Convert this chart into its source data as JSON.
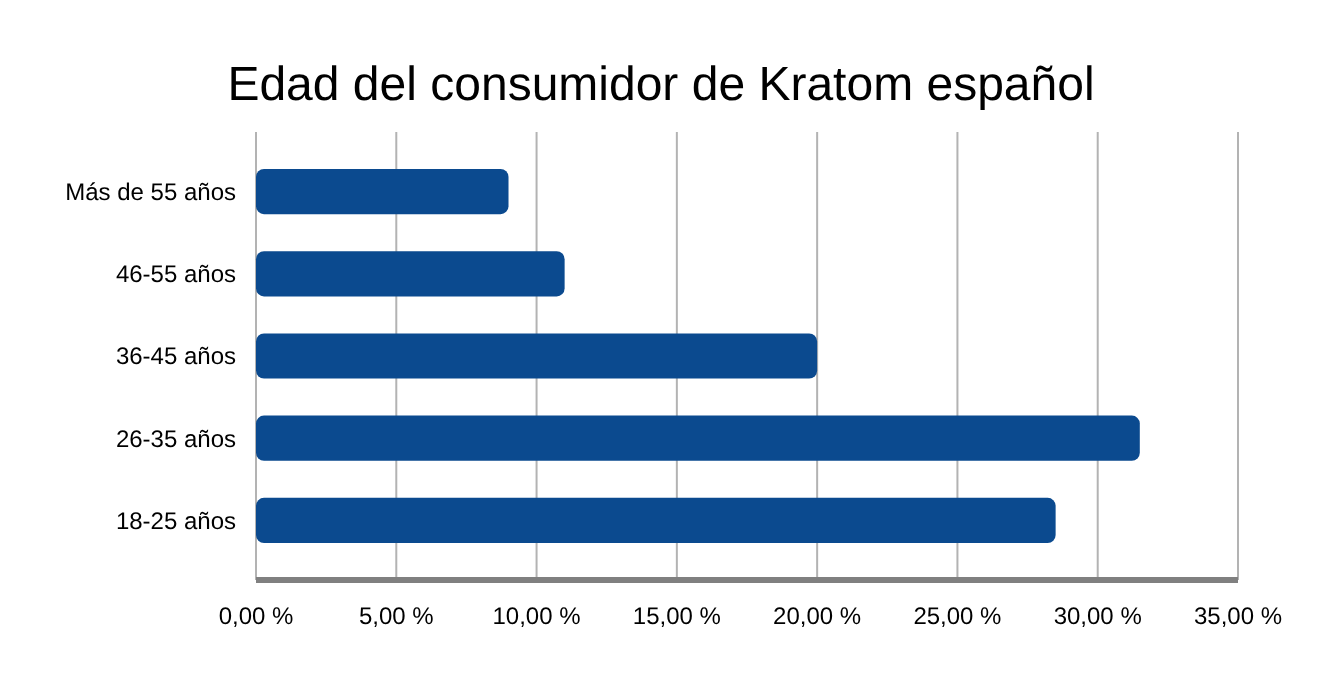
{
  "chart_data": {
    "type": "bar",
    "orientation": "horizontal",
    "title": "Edad del consumidor de Kratom español",
    "categories": [
      "Más de 55 años",
      "46-55 años",
      "36-45 años",
      "26-35 años",
      "18-25 años"
    ],
    "values": [
      9,
      11,
      20,
      31.5,
      28.5
    ],
    "color": "#0b4a8f",
    "xlim": [
      0,
      35
    ],
    "xticks": [
      {
        "value": 0,
        "label": "0,00 %"
      },
      {
        "value": 5,
        "label": "5,00 %"
      },
      {
        "value": 10,
        "label": "10,00 %"
      },
      {
        "value": 15,
        "label": "15,00 %"
      },
      {
        "value": 20,
        "label": "20,00 %"
      },
      {
        "value": 25,
        "label": "25,00 %"
      },
      {
        "value": 30,
        "label": "30,00 %"
      },
      {
        "value": 35,
        "label": "35,00 %"
      }
    ],
    "grid": "x"
  }
}
